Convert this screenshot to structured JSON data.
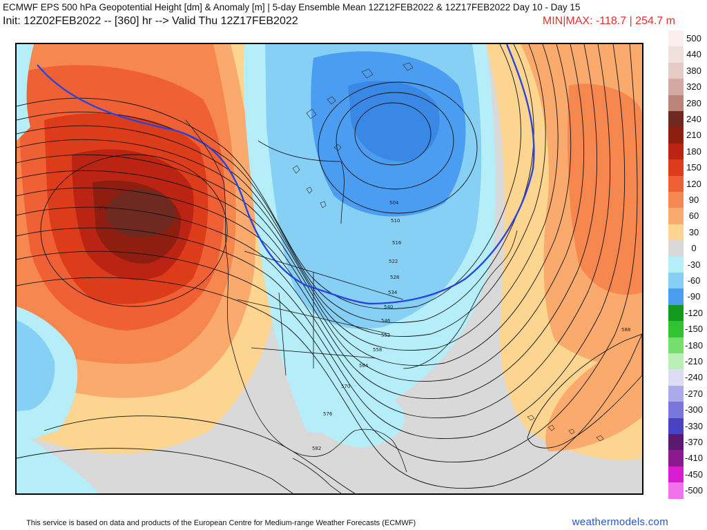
{
  "header": {
    "title": "ECMWF EPS 500 hPa Geopotential Height [dm] & Anomaly [m] | 5-day Ensemble Mean 12Z12FEB2022 & 12Z17FEB2022   Day 10 - Day 15",
    "init_line": "Init: 12Z02FEB2022 -- [360] hr --> Valid Thu 12Z17FEB2022",
    "minmax": "MIN|MAX: -118.7 | 254.7 m"
  },
  "legend": {
    "entries": [
      {
        "label": "500",
        "color": "#fbeeee"
      },
      {
        "label": "440",
        "color": "#efe0dc"
      },
      {
        "label": "380",
        "color": "#e4cbc6"
      },
      {
        "label": "320",
        "color": "#d2aaa2"
      },
      {
        "label": "280",
        "color": "#b9857b"
      },
      {
        "label": "240",
        "color": "#6e2a20"
      },
      {
        "label": "210",
        "color": "#8e1e10"
      },
      {
        "label": "180",
        "color": "#bb2412"
      },
      {
        "label": "150",
        "color": "#dd3c1a"
      },
      {
        "label": "120",
        "color": "#ef6134"
      },
      {
        "label": "90",
        "color": "#f6874f"
      },
      {
        "label": "60",
        "color": "#f9aa6c"
      },
      {
        "label": "30",
        "color": "#fcd590"
      },
      {
        "label": "0",
        "color": "#d9d9d9"
      },
      {
        "label": "-30",
        "color": "#b5eef8"
      },
      {
        "label": "-60",
        "color": "#86cff5"
      },
      {
        "label": "-90",
        "color": "#4a9df0"
      },
      {
        "label": "-120",
        "color": "#139a1e"
      },
      {
        "label": "-150",
        "color": "#31c332"
      },
      {
        "label": "-180",
        "color": "#74de6f"
      },
      {
        "label": "-210",
        "color": "#b9efb4"
      },
      {
        "label": "-240",
        "color": "#dcdcf4"
      },
      {
        "label": "-270",
        "color": "#ababec"
      },
      {
        "label": "-300",
        "color": "#7b76da"
      },
      {
        "label": "-330",
        "color": "#4a42c2"
      },
      {
        "label": "-370",
        "color": "#5a1a70"
      },
      {
        "label": "-410",
        "color": "#8a1a8e"
      },
      {
        "label": "-450",
        "color": "#d71cd2"
      },
      {
        "label": "-500",
        "color": "#f272ea"
      }
    ]
  },
  "map": {
    "contour_labels": [
      "576",
      "504",
      "510",
      "516",
      "522",
      "528",
      "534",
      "540",
      "546",
      "552",
      "558",
      "564",
      "570",
      "576",
      "582",
      "588"
    ]
  },
  "footer": {
    "attribution": "This service is based on data and products of the European Centre for Medium-range Weather Forecasts (ECMWF)",
    "brand": "weathermodels.com"
  }
}
